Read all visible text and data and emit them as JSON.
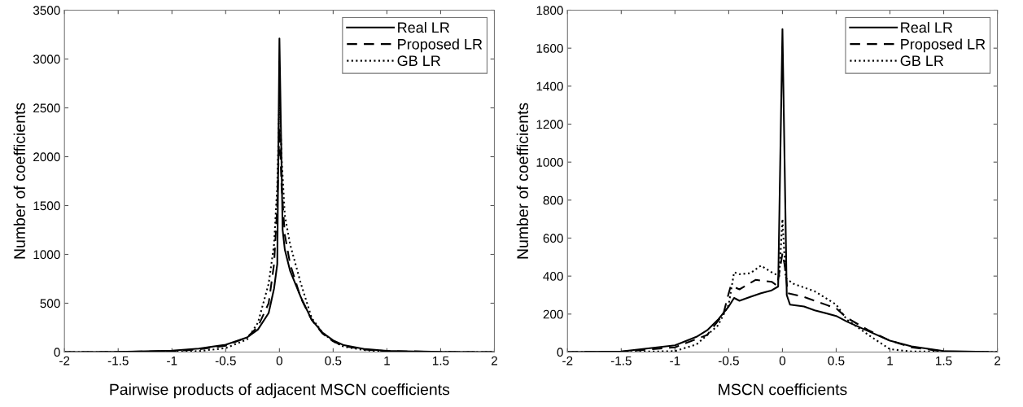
{
  "chart_data": [
    {
      "type": "line",
      "xlabel": "Pairwise products of adjacent MSCN coefficients",
      "ylabel": "Number of coefficients",
      "xlim": [
        -2,
        2
      ],
      "ylim": [
        0,
        3500
      ],
      "xticks": [
        -2,
        -1.5,
        -1,
        -0.5,
        0,
        0.5,
        1,
        1.5,
        2
      ],
      "yticks": [
        0,
        500,
        1000,
        1500,
        2000,
        2500,
        3000,
        3500
      ],
      "legend": "top right",
      "grid": false,
      "marker": "none",
      "series": [
        {
          "name": "Real LR",
          "color": "#000000",
          "line_style": "solid",
          "x": [
            -2,
            -1.5,
            -1,
            -0.75,
            -0.5,
            -0.3,
            -0.2,
            -0.1,
            -0.05,
            -0.02,
            0,
            0.03,
            0.05,
            0.1,
            0.2,
            0.3,
            0.4,
            0.5,
            0.6,
            0.8,
            1,
            1.5,
            2
          ],
          "values": [
            0,
            2,
            15,
            35,
            75,
            150,
            230,
            400,
            650,
            900,
            3210,
            1250,
            1050,
            830,
            560,
            330,
            200,
            120,
            70,
            30,
            12,
            2,
            0
          ]
        },
        {
          "name": "Proposed LR",
          "color": "#000000",
          "line_style": "dashed",
          "x": [
            -2,
            -1.5,
            -1,
            -0.75,
            -0.5,
            -0.3,
            -0.2,
            -0.1,
            -0.05,
            -0.02,
            0,
            0.02,
            0.05,
            0.1,
            0.2,
            0.3,
            0.4,
            0.5,
            0.6,
            0.8,
            1,
            1.5,
            2
          ],
          "values": [
            0,
            1,
            10,
            28,
            65,
            150,
            260,
            500,
            900,
            1500,
            2300,
            1700,
            1200,
            900,
            550,
            330,
            190,
            110,
            60,
            25,
            10,
            1,
            0
          ]
        },
        {
          "name": "GB LR",
          "color": "#000000",
          "line_style": "dotted",
          "x": [
            -2,
            -1.5,
            -1,
            -0.75,
            -0.5,
            -0.3,
            -0.2,
            -0.1,
            -0.05,
            -0.02,
            0,
            0.02,
            0.05,
            0.1,
            0.2,
            0.3,
            0.4,
            0.5,
            0.6,
            0.8,
            1,
            1.5,
            2
          ],
          "values": [
            0,
            0,
            3,
            10,
            40,
            130,
            300,
            700,
            1100,
            1700,
            2600,
            2000,
            1400,
            1100,
            700,
            350,
            200,
            110,
            55,
            18,
            5,
            0,
            0
          ]
        }
      ]
    },
    {
      "type": "line",
      "xlabel": "MSCN coefficients",
      "ylabel": "Number of coefficients",
      "xlim": [
        -2,
        2
      ],
      "ylim": [
        0,
        1800
      ],
      "xticks": [
        -2,
        -1.5,
        -1,
        -0.5,
        0,
        0.5,
        1,
        1.5,
        2
      ],
      "yticks": [
        0,
        200,
        400,
        600,
        800,
        1000,
        1200,
        1400,
        1600,
        1800
      ],
      "legend": "top right",
      "grid": false,
      "marker": "none",
      "series": [
        {
          "name": "Real LR",
          "color": "#000000",
          "line_style": "solid",
          "x": [
            -2,
            -1.5,
            -1,
            -0.8,
            -0.7,
            -0.6,
            -0.5,
            -0.45,
            -0.4,
            -0.3,
            -0.2,
            -0.1,
            -0.04,
            0,
            0.04,
            0.07,
            0.2,
            0.3,
            0.5,
            0.6,
            0.8,
            1,
            1.2,
            1.5,
            2
          ],
          "values": [
            0,
            3,
            35,
            80,
            115,
            170,
            240,
            285,
            270,
            290,
            310,
            325,
            345,
            1700,
            300,
            250,
            240,
            220,
            190,
            160,
            110,
            60,
            30,
            5,
            0
          ]
        },
        {
          "name": "Proposed LR",
          "color": "#000000",
          "line_style": "dashed",
          "x": [
            -2,
            -1.5,
            -1,
            -0.7,
            -0.55,
            -0.5,
            -0.48,
            -0.4,
            -0.25,
            -0.1,
            -0.05,
            -0.02,
            0,
            0.02,
            0.05,
            0.2,
            0.5,
            0.6,
            0.8,
            1,
            1.2,
            1.5,
            2
          ],
          "values": [
            0,
            2,
            25,
            90,
            200,
            310,
            350,
            330,
            380,
            370,
            350,
            450,
            520,
            460,
            310,
            290,
            230,
            180,
            115,
            60,
            25,
            3,
            0
          ]
        },
        {
          "name": "GB LR",
          "color": "#000000",
          "line_style": "dotted",
          "x": [
            -2,
            -1.5,
            -1,
            -0.8,
            -0.6,
            -0.5,
            -0.45,
            -0.4,
            -0.3,
            -0.2,
            -0.1,
            -0.03,
            0,
            0.03,
            0.1,
            0.3,
            0.5,
            0.6,
            0.8,
            1,
            1.2,
            2
          ],
          "values": [
            0,
            0,
            5,
            40,
            140,
            250,
            420,
            410,
            415,
            455,
            420,
            400,
            700,
            390,
            360,
            320,
            250,
            170,
            90,
            15,
            3,
            0
          ]
        }
      ]
    }
  ]
}
